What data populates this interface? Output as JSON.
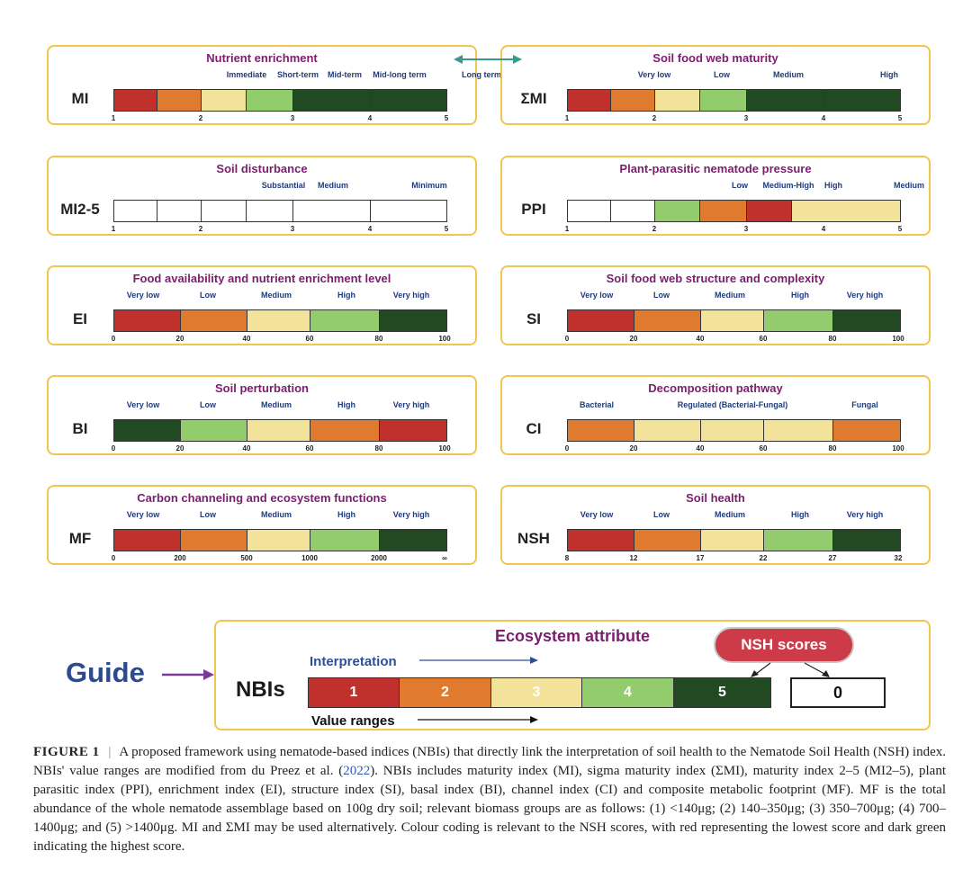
{
  "connector_color": "#3b9a8e",
  "panels": [
    {
      "id": "mi",
      "title": "Nutrient enrichment",
      "name": "MI",
      "categories": [
        "Immediate",
        "Short-term",
        "Mid-term",
        "Mid-long term",
        "Long term"
      ],
      "ticks": [
        "1",
        "2",
        "3",
        "4",
        "5"
      ],
      "segments": [
        "#c0302c",
        "#e07a2e",
        "#f3e39a",
        "#92cc6c",
        "#224a22",
        "#224a22"
      ]
    },
    {
      "id": "smi",
      "title": "Soil food web maturity",
      "name": "ΣMI",
      "categories": [
        "Very low",
        "Low",
        "Medium",
        "High"
      ],
      "ticks": [
        "1",
        "2",
        "3",
        "4",
        "5"
      ],
      "segments": [
        "#c0302c",
        "#e07a2e",
        "#f3e39a",
        "#92cc6c",
        "#224a22",
        "#224a22"
      ]
    },
    {
      "id": "mi25",
      "title": "Soil disturbance",
      "name": "MI2-5",
      "categories": [
        "Substantial",
        "Medium",
        "Minimum"
      ],
      "ticks": [
        "1",
        "2",
        "3",
        "4",
        "5"
      ],
      "segments": [
        "#ffffff",
        "#ffffff",
        "#ffffff",
        "#ffffff",
        "#ffffff",
        "#ffffff"
      ]
    },
    {
      "id": "ppi",
      "title": "Plant-parasitic nematode pressure",
      "name": "PPI",
      "categories": [
        "Low",
        "Medium-High",
        "High",
        "Medium"
      ],
      "ticks": [
        "1",
        "2",
        "3",
        "4",
        "5"
      ],
      "segments": [
        "#ffffff",
        "#ffffff",
        "#92cc6c",
        "#e07a2e",
        "#c0302c",
        "#f3e39a"
      ]
    },
    {
      "id": "ei",
      "title": "Food availability and nutrient enrichment level",
      "name": "EI",
      "categories": [
        "Very low",
        "Low",
        "Medium",
        "High",
        "Very high"
      ],
      "ticks": [
        "0",
        "20",
        "40",
        "60",
        "80",
        "100"
      ],
      "segments": [
        "#c0302c",
        "#e07a2e",
        "#f3e39a",
        "#92cc6c",
        "#224a22"
      ]
    },
    {
      "id": "si",
      "title": "Soil food web structure and complexity",
      "name": "SI",
      "categories": [
        "Very low",
        "Low",
        "Medium",
        "High",
        "Very high"
      ],
      "ticks": [
        "0",
        "20",
        "40",
        "60",
        "80",
        "100"
      ],
      "segments": [
        "#c0302c",
        "#e07a2e",
        "#f3e39a",
        "#92cc6c",
        "#224a22"
      ]
    },
    {
      "id": "bi",
      "title": "Soil perturbation",
      "name": "BI",
      "categories": [
        "Very low",
        "Low",
        "Medium",
        "High",
        "Very high"
      ],
      "ticks": [
        "0",
        "20",
        "40",
        "60",
        "80",
        "100"
      ],
      "segments": [
        "#224a22",
        "#92cc6c",
        "#f3e39a",
        "#e07a2e",
        "#c0302c"
      ]
    },
    {
      "id": "ci",
      "title": "Decomposition pathway",
      "name": "CI",
      "categories": [
        "Bacterial",
        "Regulated (Bacterial-Fungal)",
        "Fungal"
      ],
      "ticks": [
        "0",
        "20",
        "40",
        "60",
        "80",
        "100"
      ],
      "segments": [
        "#e07a2e",
        "#f3e39a",
        "#f3e39a",
        "#f3e39a",
        "#e07a2e"
      ]
    },
    {
      "id": "mf",
      "title": "Carbon channeling and ecosystem functions",
      "name": "MF",
      "categories": [
        "Very low",
        "Low",
        "Medium",
        "High",
        "Very high"
      ],
      "ticks": [
        "0",
        "200",
        "500",
        "1000",
        "2000",
        "∞"
      ],
      "segments": [
        "#c0302c",
        "#e07a2e",
        "#f3e39a",
        "#92cc6c",
        "#224a22"
      ]
    },
    {
      "id": "nsh",
      "title": "Soil health",
      "name": "NSH",
      "categories": [
        "Very low",
        "Low",
        "Medium",
        "High",
        "Very high"
      ],
      "ticks": [
        "8",
        "12",
        "17",
        "22",
        "27",
        "32"
      ],
      "segments": [
        "#c0302c",
        "#e07a2e",
        "#f3e39a",
        "#92cc6c",
        "#224a22"
      ]
    }
  ],
  "guide": {
    "label": "Guide",
    "title": "Ecosystem attribute",
    "nbis": "NBIs",
    "interpretation": "Interpretation",
    "value_ranges": "Value ranges",
    "nsh_badge": "NSH scores",
    "score": "0",
    "scale": [
      {
        "text": "1",
        "color": "#c0302c",
        "text_color": "#ffffff"
      },
      {
        "text": "2",
        "color": "#e07a2e",
        "text_color": "#ffffff"
      },
      {
        "text": "3",
        "color": "#f3e39a",
        "text_color": "#ffffff"
      },
      {
        "text": "4",
        "color": "#92cc6c",
        "text_color": "#ffffff"
      },
      {
        "text": "5",
        "color": "#224a22",
        "text_color": "#ffffff"
      }
    ]
  },
  "caption": {
    "label": "FIGURE 1",
    "separator": "|",
    "part1": "A proposed framework using nematode-based indices (NBIs) that directly link the interpretation of soil health to the Nematode Soil Health (NSH) index. NBIs' value ranges are modified from du Preez et al. (",
    "link": "2022",
    "part2": "). NBIs includes maturity index (MI), sigma maturity index (ΣMI), maturity index 2–5 (MI2–5), plant parasitic index (PPI), enrichment index (EI), structure index (SI), basal index (BI), channel index (CI) and composite metabolic footprint (MF). MF is the total abundance of the whole nematode assemblage based on 100g dry soil; relevant biomass groups are as follows: (1) <140μg; (2) 140–350μg; (3) 350–700μg; (4) 700–1400μg; and (5) >1400μg. MI and ΣMI may be used alternatively. Colour coding is relevant to the NSH scores, with red representing the lowest score and dark green indicating the highest score."
  }
}
